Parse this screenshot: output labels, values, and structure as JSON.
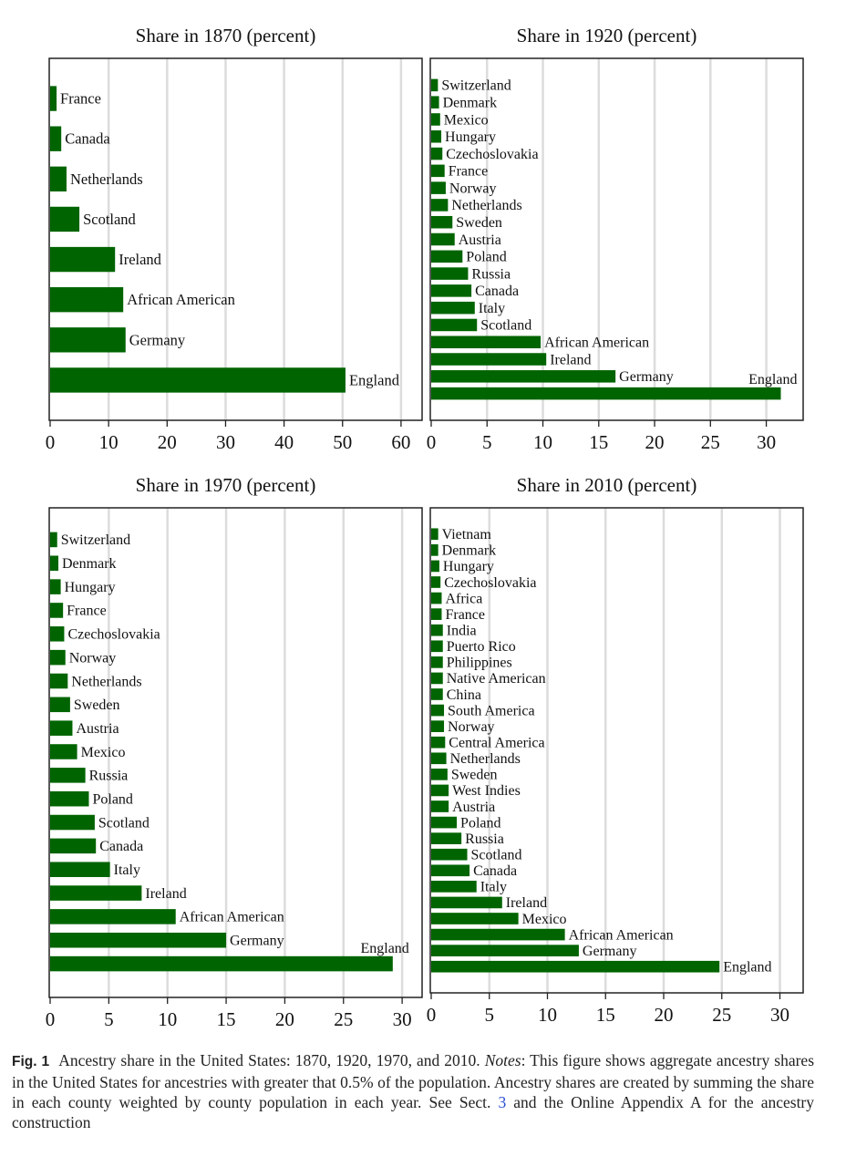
{
  "chart_data": [
    {
      "type": "bar",
      "orientation": "horizontal",
      "title": "Share in 1870 (percent)",
      "categories": [
        "France",
        "Canada",
        "Netherlands",
        "Scotland",
        "Ireland",
        "African American",
        "Germany",
        "England"
      ],
      "values": [
        1.1,
        1.9,
        2.8,
        5.0,
        11.1,
        12.5,
        12.9,
        50.5
      ],
      "xlim": [
        0,
        63.6
      ],
      "xticks": [
        0,
        10,
        20,
        30,
        40,
        50,
        60
      ],
      "grid": true,
      "bar_color": "#006400"
    },
    {
      "type": "bar",
      "orientation": "horizontal",
      "title": "Share in 1920 (percent)",
      "categories": [
        "Switzerland",
        "Denmark",
        "Mexico",
        "Hungary",
        "Czechoslovakia",
        "France",
        "Norway",
        "Netherlands",
        "Sweden",
        "Austria",
        "Poland",
        "Russia",
        "Canada",
        "Italy",
        "Scotland",
        "African American",
        "Ireland",
        "Germany",
        "England"
      ],
      "values": [
        0.6,
        0.7,
        0.8,
        0.9,
        1.0,
        1.2,
        1.3,
        1.5,
        1.9,
        2.1,
        2.8,
        3.3,
        3.6,
        3.9,
        4.1,
        9.8,
        10.3,
        16.5,
        31.3
      ],
      "xlim": [
        0,
        33.3
      ],
      "xticks": [
        0,
        5,
        10,
        15,
        20,
        25,
        30
      ],
      "grid": true,
      "bar_color": "#006400"
    },
    {
      "type": "bar",
      "orientation": "horizontal",
      "title": "Share in 1970 (percent)",
      "categories": [
        "Switzerland",
        "Denmark",
        "Hungary",
        "France",
        "Czechoslovakia",
        "Norway",
        "Netherlands",
        "Sweden",
        "Austria",
        "Mexico",
        "Russia",
        "Poland",
        "Scotland",
        "Canada",
        "Italy",
        "Ireland",
        "African American",
        "Germany",
        "England"
      ],
      "values": [
        0.6,
        0.7,
        0.9,
        1.1,
        1.2,
        1.3,
        1.5,
        1.7,
        1.9,
        2.3,
        3.0,
        3.3,
        3.8,
        3.9,
        5.1,
        7.8,
        10.7,
        15.0,
        29.2
      ],
      "xlim": [
        0,
        31.7
      ],
      "xticks": [
        0,
        5,
        10,
        15,
        20,
        25,
        30
      ],
      "grid": true,
      "bar_color": "#006400"
    },
    {
      "type": "bar",
      "orientation": "horizontal",
      "title": "Share in 2010 (percent)",
      "categories": [
        "Vietnam",
        "Denmark",
        "Hungary",
        "Czechoslovakia",
        "Africa",
        "France",
        "India",
        "Puerto Rico",
        "Philippines",
        "Native American",
        "China",
        "South America",
        "Norway",
        "Central America",
        "Netherlands",
        "Sweden",
        "West Indies",
        "Austria",
        "Poland",
        "Russia",
        "Scotland",
        "Canada",
        "Italy",
        "Ireland",
        "Mexico",
        "African American",
        "Germany",
        "England"
      ],
      "values": [
        0.6,
        0.6,
        0.7,
        0.8,
        0.9,
        0.9,
        1.0,
        1.0,
        1.0,
        1.0,
        1.0,
        1.1,
        1.1,
        1.2,
        1.3,
        1.4,
        1.5,
        1.5,
        2.2,
        2.6,
        3.1,
        3.3,
        3.9,
        6.1,
        7.5,
        11.5,
        12.7,
        24.8
      ],
      "xlim": [
        0,
        32.0
      ],
      "xticks": [
        0,
        5,
        10,
        15,
        20,
        25,
        30
      ],
      "grid": true,
      "bar_color": "#006400"
    }
  ],
  "caption": {
    "label": "Fig. 1",
    "text1": "Ancestry share in the United States: 1870, 1920, 1970, and 2010.",
    "notes_label": "Notes",
    "text2": ": This figure shows aggregate ancestry shares in the United States for ancestries with greater that 0.5% of the population. Ancestry shares are created by summing the share in each county weighted by county population in each year. See Sect.",
    "section_link": "3",
    "text3": "and the Online Appendix A for the ancestry construction"
  }
}
